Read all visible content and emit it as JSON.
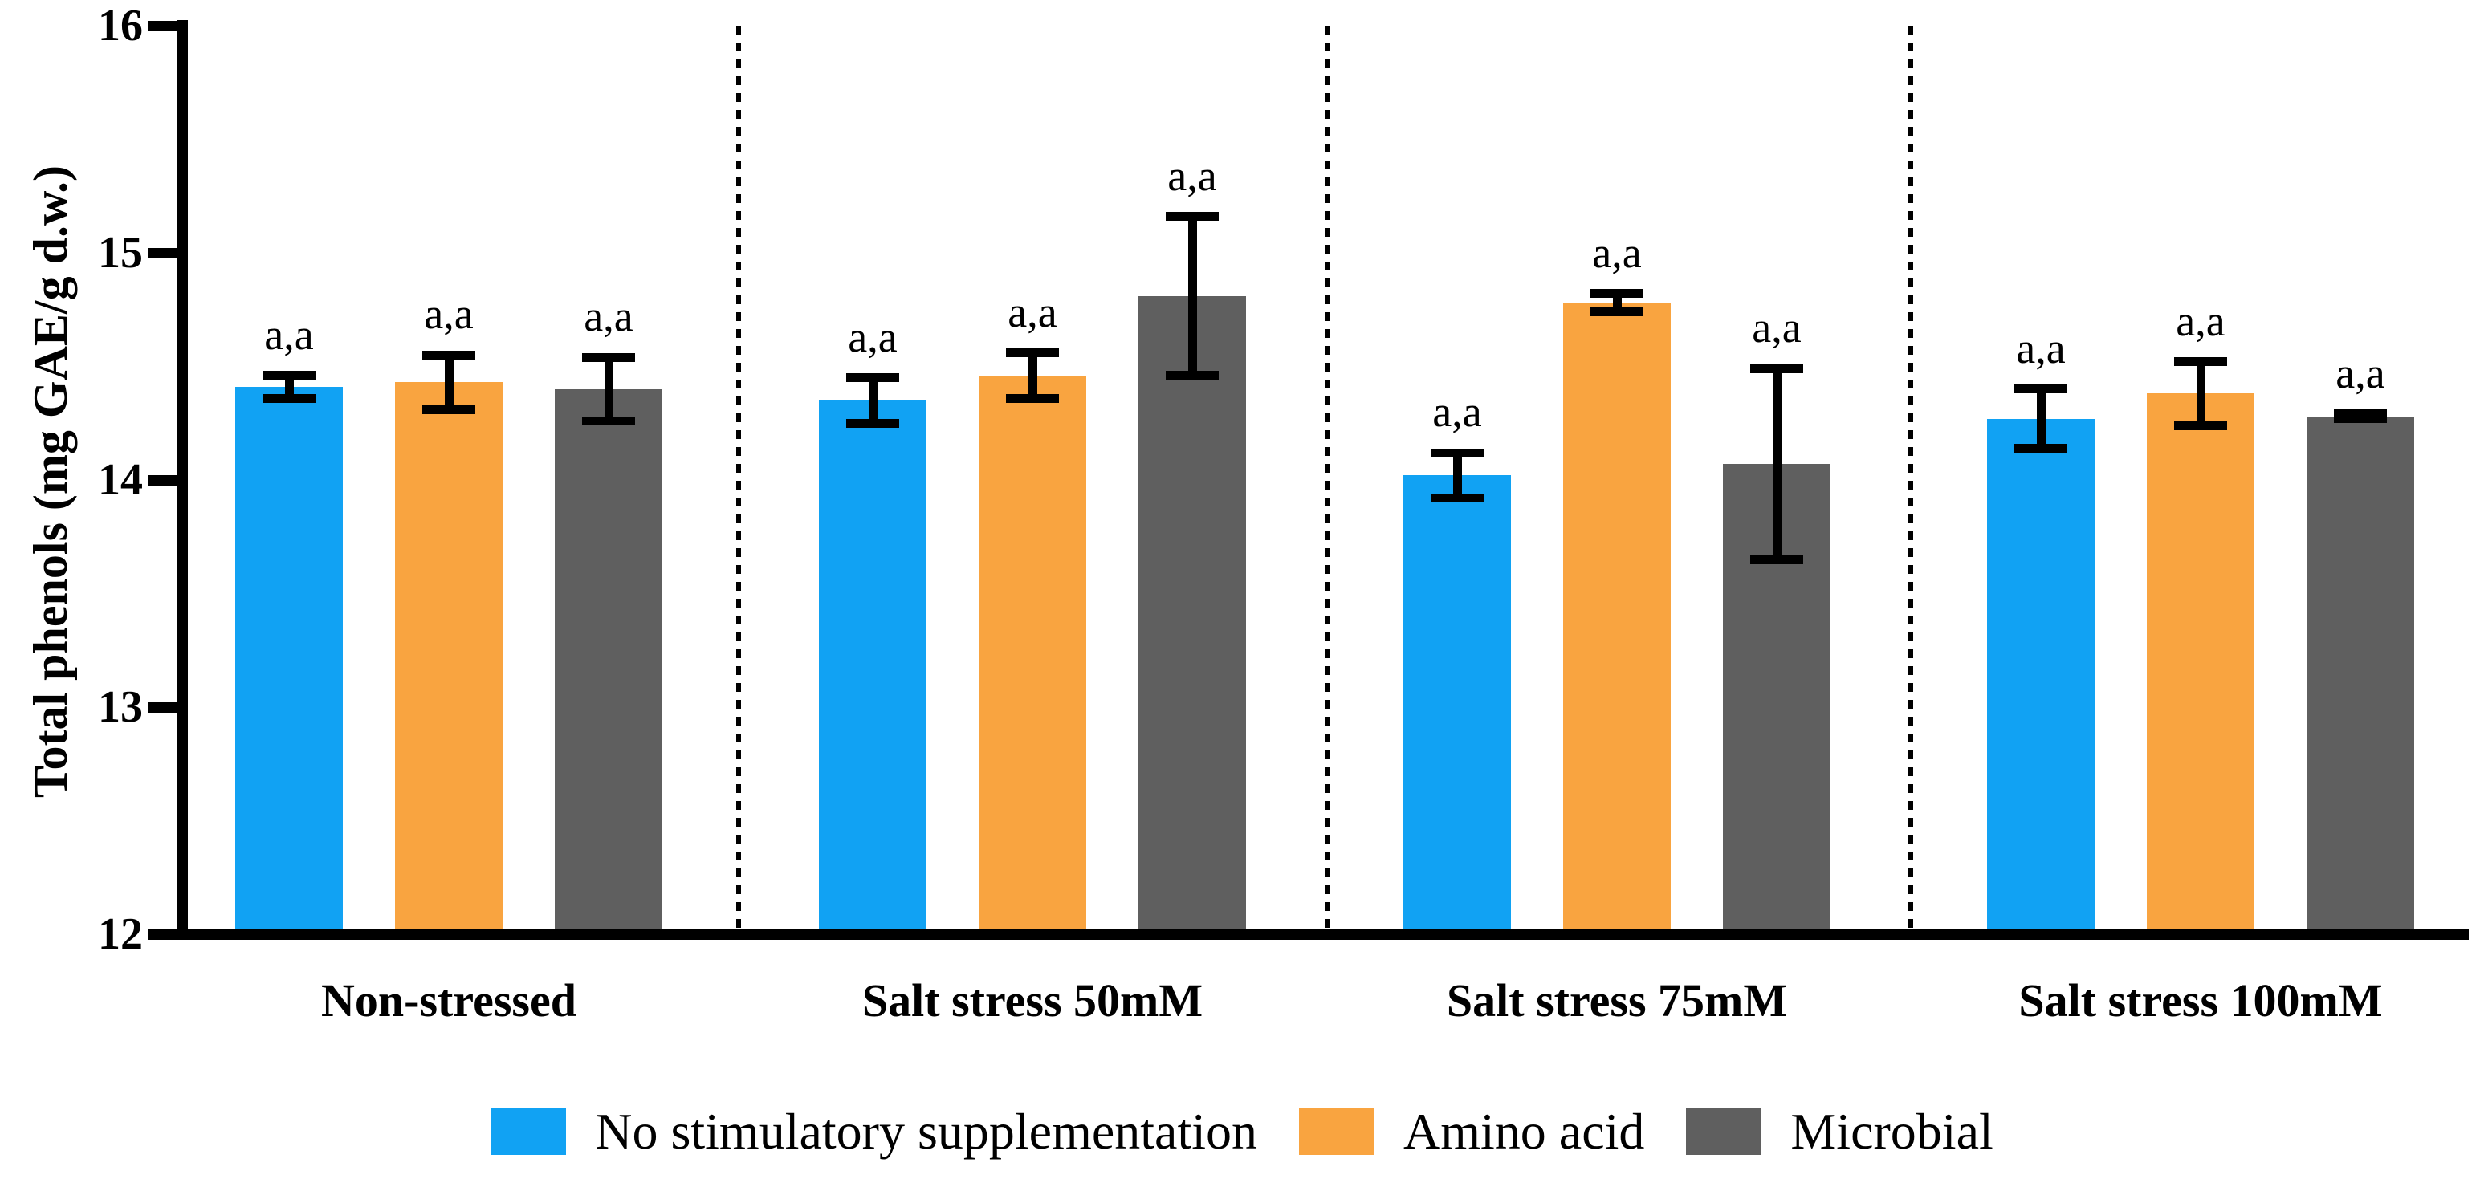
{
  "chart_data": {
    "type": "bar",
    "title": "",
    "xlabel": "",
    "ylabel": "Total phenols (mg GAE/g d.w.)",
    "ylim": [
      12,
      16
    ],
    "yticks": [
      12,
      13,
      14,
      15,
      16
    ],
    "grid": false,
    "legend_position": "bottom",
    "group_separator_style": "vertical dashed black lines between category groups",
    "error_bars": "mean ± error, black caps",
    "categories": [
      "Non-stressed",
      "Salt stress 50mM",
      "Salt stress 75mM",
      "Salt stress 100mM"
    ],
    "series": [
      {
        "name": "No stimulatory supplementation",
        "color": "#11A2F3",
        "values": [
          14.41,
          14.35,
          14.02,
          14.27
        ],
        "errors": [
          0.05,
          0.1,
          0.1,
          0.13
        ],
        "annotations": [
          "a,a",
          "a,a",
          "a,a",
          "a,a"
        ]
      },
      {
        "name": "Amino acid",
        "color": "#F9A440",
        "values": [
          14.43,
          14.46,
          14.78,
          14.38
        ],
        "errors": [
          0.12,
          0.1,
          0.04,
          0.14
        ],
        "annotations": [
          "a,a",
          "a,a",
          "a,a",
          "a,a"
        ]
      },
      {
        "name": "Microbial",
        "color": "#5F5F5F",
        "values": [
          14.4,
          14.81,
          14.07,
          14.28
        ],
        "errors": [
          0.14,
          0.35,
          0.42,
          0.01
        ],
        "annotations": [
          "a,a",
          "a,a",
          "a,a",
          "a,a"
        ]
      }
    ]
  },
  "colors": {
    "axis": "#000000",
    "background": "#FFFFFF",
    "annotation_text": "#000000"
  }
}
